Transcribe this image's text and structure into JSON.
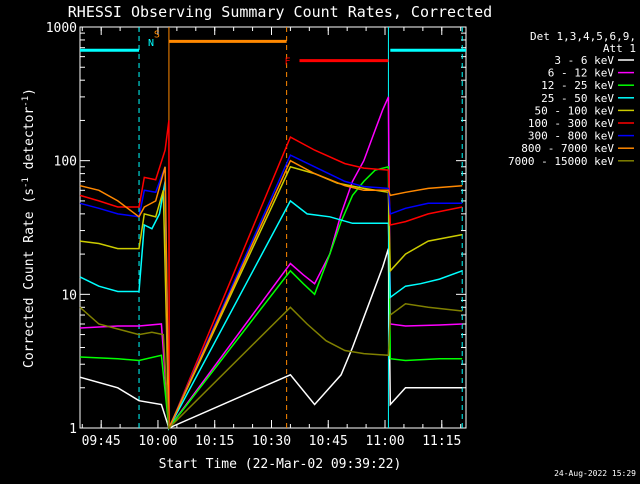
{
  "chart_data": {
    "type": "line",
    "title": "RHESSI Observing Summary Count Rates, Corrected",
    "xlabel": "Start Time (22-Mar-02 09:39:22)",
    "ylabel": "Corrected Count Rate (s",
    "ylabel_sup1": "-1",
    "ylabel_mid": " detector",
    "ylabel_sup2": "-1",
    "ylabel_end": ")",
    "y_scale": "log",
    "ylim": [
      1,
      1000
    ],
    "xlim_minutes": [
      0,
      102
    ],
    "x_ticks": [
      {
        "label": "09:45",
        "minute": 5.6
      },
      {
        "label": "10:00",
        "minute": 20.6
      },
      {
        "label": "10:15",
        "minute": 35.6
      },
      {
        "label": "10:30",
        "minute": 50.6
      },
      {
        "label": "10:45",
        "minute": 65.6
      },
      {
        "label": "11:00",
        "minute": 80.6
      },
      {
        "label": "11:15",
        "minute": 95.6
      }
    ],
    "y_ticks": [
      {
        "label": "1",
        "value": 1
      },
      {
        "label": "10",
        "value": 10
      },
      {
        "label": "100",
        "value": 100
      },
      {
        "label": "1000",
        "value": 1000
      }
    ],
    "legend_header": [
      "Det 1,3,4,5,6,9,",
      "Att 1"
    ],
    "legend_placement": "right",
    "series": [
      {
        "name": "3 - 6 keV",
        "color": "#ffffff",
        "points": [
          [
            0,
            2.4
          ],
          [
            10,
            2.0
          ],
          [
            15.6,
            1.6
          ],
          [
            21.5,
            1.5
          ],
          [
            23.5,
            1.0
          ],
          [
            55.6,
            2.5
          ],
          [
            62,
            1.5
          ],
          [
            69,
            2.5
          ],
          [
            72,
            4
          ],
          [
            76,
            8
          ],
          [
            80,
            16
          ],
          [
            81.5,
            22
          ],
          [
            82,
            1.5
          ],
          [
            86,
            2.0
          ],
          [
            95,
            2.0
          ],
          [
            101,
            2.0
          ]
        ]
      },
      {
        "name": "6 - 12 keV",
        "color": "#ff00ff",
        "points": [
          [
            0,
            5.6
          ],
          [
            10,
            5.8
          ],
          [
            15.6,
            5.8
          ],
          [
            21.5,
            6.0
          ],
          [
            23.5,
            1.0
          ],
          [
            55.6,
            17
          ],
          [
            59,
            14
          ],
          [
            62,
            12
          ],
          [
            66,
            20
          ],
          [
            69,
            40
          ],
          [
            72,
            70
          ],
          [
            75,
            100
          ],
          [
            78,
            170
          ],
          [
            80,
            240
          ],
          [
            81.5,
            300
          ],
          [
            82,
            6
          ],
          [
            86,
            5.8
          ],
          [
            95,
            5.9
          ],
          [
            101,
            6
          ]
        ]
      },
      {
        "name": "12 - 25 keV",
        "color": "#00ff00",
        "points": [
          [
            0,
            3.4
          ],
          [
            10,
            3.3
          ],
          [
            15.6,
            3.2
          ],
          [
            21.5,
            3.5
          ],
          [
            23.5,
            1.0
          ],
          [
            55.6,
            15
          ],
          [
            59,
            12
          ],
          [
            62,
            10
          ],
          [
            66,
            20
          ],
          [
            69,
            35
          ],
          [
            72,
            55
          ],
          [
            75,
            70
          ],
          [
            78,
            85
          ],
          [
            81.5,
            90
          ],
          [
            82,
            3.3
          ],
          [
            86,
            3.2
          ],
          [
            95,
            3.3
          ],
          [
            101,
            3.3
          ]
        ]
      },
      {
        "name": "25 - 50 keV",
        "color": "#00ffff",
        "points": [
          [
            0,
            13.5
          ],
          [
            5,
            11.5
          ],
          [
            10,
            10.5
          ],
          [
            15.6,
            10.5
          ],
          [
            17,
            33
          ],
          [
            19,
            31
          ],
          [
            21,
            40
          ],
          [
            22.5,
            70
          ],
          [
            23.5,
            1.0
          ],
          [
            55.6,
            50
          ],
          [
            60,
            40
          ],
          [
            66,
            38
          ],
          [
            72,
            34
          ],
          [
            78,
            34
          ],
          [
            81.5,
            34
          ],
          [
            82,
            9.5
          ],
          [
            86,
            11.5
          ],
          [
            90,
            12
          ],
          [
            95,
            13
          ],
          [
            101,
            15
          ]
        ]
      },
      {
        "name": "50 - 100 keV",
        "color": "#cccc00",
        "points": [
          [
            0,
            25
          ],
          [
            5,
            24
          ],
          [
            10,
            22
          ],
          [
            15.6,
            22
          ],
          [
            17,
            40
          ],
          [
            20,
            38
          ],
          [
            22,
            60
          ],
          [
            23.5,
            1.0
          ],
          [
            55.6,
            90
          ],
          [
            62,
            80
          ],
          [
            68,
            68
          ],
          [
            75,
            62
          ],
          [
            81.5,
            58
          ],
          [
            82,
            15
          ],
          [
            86,
            20
          ],
          [
            92,
            25
          ],
          [
            101,
            28
          ]
        ]
      },
      {
        "name": "100 - 300 keV",
        "color": "#ff0000",
        "points": [
          [
            0,
            55
          ],
          [
            5,
            50
          ],
          [
            10,
            45
          ],
          [
            15.6,
            45
          ],
          [
            17,
            75
          ],
          [
            20,
            72
          ],
          [
            22.5,
            120
          ],
          [
            23.5,
            200
          ],
          [
            23.6,
            1.0
          ],
          [
            55.6,
            150
          ],
          [
            62,
            120
          ],
          [
            70,
            95
          ],
          [
            75,
            88
          ],
          [
            81.5,
            85
          ],
          [
            82,
            33
          ],
          [
            86,
            35
          ],
          [
            92,
            40
          ],
          [
            101,
            45
          ]
        ]
      },
      {
        "name": "300 - 800 keV",
        "color": "#0000ff",
        "points": [
          [
            0,
            48
          ],
          [
            5,
            44
          ],
          [
            10,
            40
          ],
          [
            15.6,
            38
          ],
          [
            17,
            60
          ],
          [
            20,
            58
          ],
          [
            22.5,
            90
          ],
          [
            23.5,
            1.0
          ],
          [
            55.6,
            110
          ],
          [
            62,
            90
          ],
          [
            70,
            70
          ],
          [
            75,
            64
          ],
          [
            81.5,
            62
          ],
          [
            82,
            40
          ],
          [
            86,
            44
          ],
          [
            92,
            48
          ],
          [
            101,
            48
          ]
        ]
      },
      {
        "name": "800 - 7000 keV",
        "color": "#ff8800",
        "points": [
          [
            0,
            65
          ],
          [
            5,
            60
          ],
          [
            10,
            50
          ],
          [
            15.6,
            38
          ],
          [
            17,
            45
          ],
          [
            20,
            50
          ],
          [
            22.5,
            90
          ],
          [
            23.5,
            1.0
          ],
          [
            55.6,
            100
          ],
          [
            62,
            80
          ],
          [
            70,
            65
          ],
          [
            75,
            60
          ],
          [
            81.5,
            60
          ],
          [
            82,
            55
          ],
          [
            86,
            58
          ],
          [
            92,
            62
          ],
          [
            101,
            65
          ]
        ]
      },
      {
        "name": "7000 - 15000 keV",
        "color": "#808000",
        "points": [
          [
            0,
            8
          ],
          [
            5,
            6
          ],
          [
            10,
            5.5
          ],
          [
            15.6,
            5.0
          ],
          [
            19,
            5.2
          ],
          [
            22,
            5.0
          ],
          [
            23.5,
            1.0
          ],
          [
            55.6,
            8
          ],
          [
            60,
            6
          ],
          [
            65,
            4.5
          ],
          [
            70,
            3.8
          ],
          [
            75,
            3.6
          ],
          [
            81.5,
            3.5
          ],
          [
            82,
            7
          ],
          [
            86,
            8.5
          ],
          [
            92,
            8
          ],
          [
            101,
            7.5
          ]
        ]
      }
    ],
    "state_bars": [
      {
        "label": "",
        "color": "#00ffff",
        "from": 0,
        "to": 15.6,
        "value": 670
      },
      {
        "label": "N",
        "color": "#00ffff",
        "from": 15.6,
        "to": 15.6,
        "value": 670
      },
      {
        "label": "S",
        "color": "#ff8800",
        "from": 23.5,
        "to": 54.6,
        "value": 780
      },
      {
        "label": "F",
        "color": "#ff0000",
        "from": 58.0,
        "to": 81.5,
        "value": 560
      },
      {
        "label": "",
        "color": "#00ffff",
        "from": 82.0,
        "to": 102,
        "value": 670
      }
    ],
    "markers": [
      {
        "minute": 15.6,
        "color": "#00ffff",
        "style": "dashed"
      },
      {
        "minute": 23.5,
        "color": "#ff8800",
        "style": "solid"
      },
      {
        "minute": 54.6,
        "color": "#ff8800",
        "style": "dashed"
      },
      {
        "minute": 81.5,
        "color": "#00ffff",
        "style": "solid"
      },
      {
        "minute": 101.0,
        "color": "#00ffff",
        "style": "dashed"
      }
    ],
    "grid": false
  },
  "footer": {
    "date_stamp": "24-Aug-2022 15:29"
  }
}
